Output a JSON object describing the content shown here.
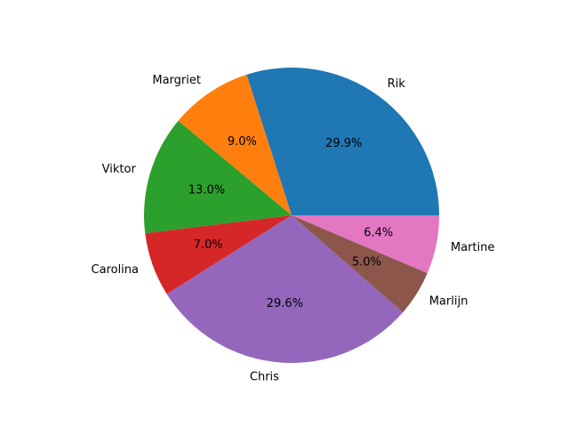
{
  "chart_data": {
    "type": "pie",
    "start_angle": 0,
    "direction": "counterclockwise",
    "slices": [
      {
        "label": "Rik",
        "value": 29.9,
        "pct_label": "29.9%",
        "color": "#1f77b4"
      },
      {
        "label": "Margriet",
        "value": 9.0,
        "pct_label": "9.0%",
        "color": "#ff7f0e"
      },
      {
        "label": "Viktor",
        "value": 13.0,
        "pct_label": "13.0%",
        "color": "#2ca02c"
      },
      {
        "label": "Carolina",
        "value": 7.0,
        "pct_label": "7.0%",
        "color": "#d62728"
      },
      {
        "label": "Chris",
        "value": 29.6,
        "pct_label": "29.6%",
        "color": "#9467bd"
      },
      {
        "label": "Marlijn",
        "value": 5.0,
        "pct_label": "5.0%",
        "color": "#8c564b"
      },
      {
        "label": "Martine",
        "value": 6.4,
        "pct_label": "6.4%",
        "color": "#e377c2"
      }
    ]
  }
}
